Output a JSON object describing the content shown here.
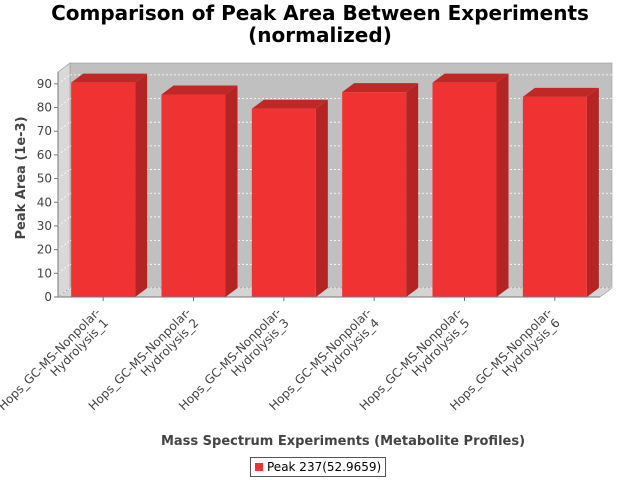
{
  "title_line1": "Comparison of Peak Area Between Experiments",
  "title_line2": "(normalized)",
  "chart_data": {
    "type": "bar",
    "categories": [
      [
        "Hops_GC-MS-Nonpolar-",
        "Hydrolysis_1"
      ],
      [
        "Hops_GC-MS-Nonpolar-",
        "Hydrolysis_2"
      ],
      [
        "Hops_GC-MS-Nonpolar-",
        "Hydrolysis_3"
      ],
      [
        "Hops_GC-MS-Nonpolar-",
        "Hydrolysis_4"
      ],
      [
        "Hops_GC-MS-Nonpolar-",
        "Hydrolysis_5"
      ],
      [
        "Hops_GC-MS-Nonpolar-",
        "Hydrolysis_6"
      ]
    ],
    "series": [
      {
        "name": "Peak 237(52.9659)",
        "values": [
          90.5,
          85.5,
          79.5,
          86.5,
          90.5,
          84.5
        ]
      }
    ],
    "xlabel": "Mass Spectrum Experiments (Metabolite Profiles)",
    "ylabel": "Peak Area (1e-3)",
    "ylim": [
      0,
      95
    ],
    "yticks": [
      0,
      10,
      20,
      30,
      40,
      50,
      60,
      70,
      80,
      90
    ],
    "grid": true,
    "legend_position": "bottom",
    "colors": {
      "bar": "#f03232",
      "bar_top": "#c02828",
      "bar_side": "#b42424",
      "plot_bg": "#c0c0c0",
      "wall_left": "#d8d8d8",
      "floor": "#d4d4d4"
    }
  }
}
